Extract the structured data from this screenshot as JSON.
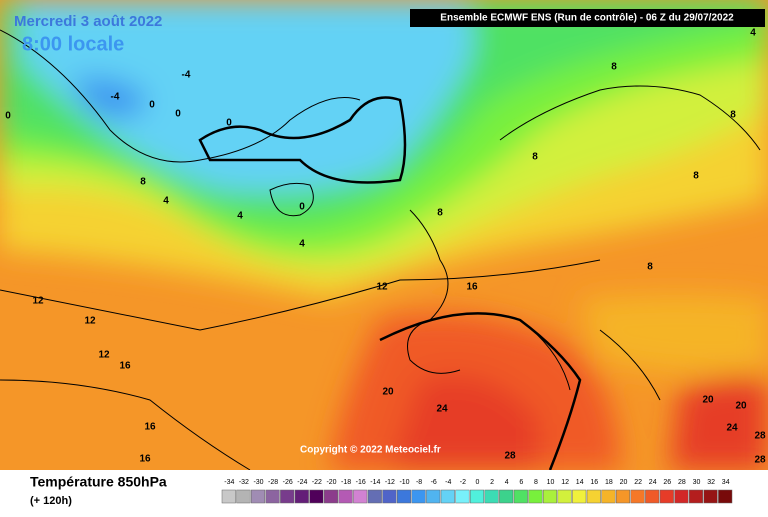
{
  "header": {
    "date": "Mercredi 3 août 2022",
    "time": "8:00 locale",
    "run": "Ensemble ECMWF ENS  (Run de contrôle)  -  06 Z du 29/07/2022"
  },
  "contour_labels": [
    -4,
    -4,
    0,
    0,
    0,
    0,
    4,
    8,
    4,
    0,
    4,
    12,
    16,
    8,
    8,
    8,
    8,
    8,
    8,
    4,
    12,
    12,
    12,
    16,
    16,
    16,
    20,
    24,
    28,
    20,
    20,
    24,
    28,
    28
  ],
  "copyright": "Copyright © 2022 Meteociel.fr",
  "legend": {
    "title": "Température 850hPa",
    "lead": "(+ 120h)",
    "ticks": [
      -34,
      -32,
      -30,
      -28,
      -26,
      -24,
      -22,
      -20,
      -18,
      -16,
      -14,
      -12,
      -10,
      -8,
      -6,
      -4,
      -2,
      0,
      2,
      4,
      6,
      8,
      10,
      12,
      14,
      16,
      18,
      20,
      22,
      24,
      26,
      28,
      30,
      32,
      34
    ],
    "colors": [
      "#c8c8c8",
      "#b4b4b4",
      "#a08cb4",
      "#8c64a0",
      "#783c8c",
      "#641e78",
      "#50005a",
      "#8c3c8c",
      "#b45ab4",
      "#d282d2",
      "#646eb4",
      "#5064c8",
      "#3c78dc",
      "#3c96f0",
      "#50b4f0",
      "#64d2f5",
      "#78f0fa",
      "#50f0dc",
      "#3cdcb4",
      "#3cd28c",
      "#50e164",
      "#78f03c",
      "#aaf03c",
      "#d2f03c",
      "#f0f03c",
      "#f5d232",
      "#f5b428",
      "#f59628",
      "#f57828",
      "#f05a28",
      "#e63c28",
      "#d22828",
      "#b41e1e",
      "#961414",
      "#780a0a"
    ]
  }
}
